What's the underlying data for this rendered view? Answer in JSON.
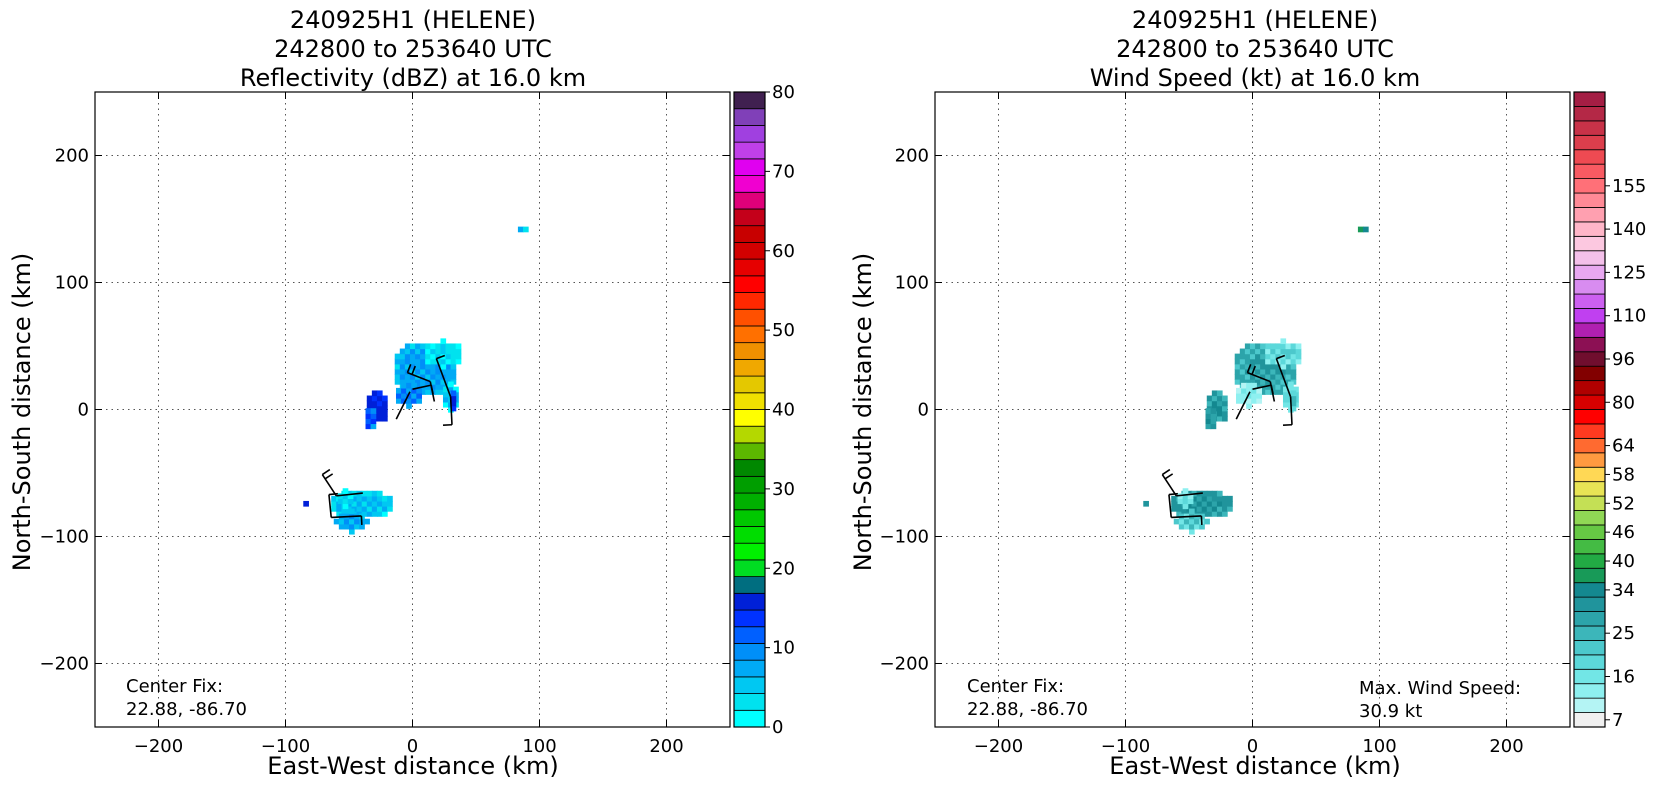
{
  "figure": {
    "panels": [
      {
        "title_lines": [
          "240925H1 (HELENE)",
          "242800 to 253640 UTC",
          "Reflectivity (dBZ) at 16.0 km"
        ],
        "xlabel": "East-West distance (km)",
        "ylabel": "North-South distance (km)",
        "center_fix_label": "Center Fix:",
        "center_fix_value": "22.88, -86.70",
        "colorbar_ticks": [
          "0",
          "10",
          "20",
          "30",
          "40",
          "50",
          "60",
          "70",
          "80"
        ]
      },
      {
        "title_lines": [
          "240925H1 (HELENE)",
          "242800 to 253640 UTC",
          "Wind Speed (kt) at 16.0 km"
        ],
        "xlabel": "East-West distance (km)",
        "ylabel": "North-South distance (km)",
        "center_fix_label": "Center Fix:",
        "center_fix_value": "22.88, -86.70",
        "max_wind_label": "Max. Wind Speed:",
        "max_wind_value": "30.9 kt",
        "colorbar_ticks": [
          "7",
          "16",
          "25",
          "34",
          "40",
          "46",
          "52",
          "58",
          "64",
          "80",
          "96",
          "110",
          "125",
          "140",
          "155"
        ]
      }
    ]
  },
  "chart_data": [
    {
      "type": "heatmap",
      "title": "240925H1 (HELENE) 242800 to 253640 UTC Reflectivity (dBZ) at 16.0 km",
      "xlabel": "East-West distance (km)",
      "ylabel": "North-South distance (km)",
      "xlim": [
        -250,
        250
      ],
      "ylim": [
        -250,
        250
      ],
      "x_ticks": [
        -200,
        -100,
        0,
        100,
        200
      ],
      "y_ticks": [
        -200,
        -100,
        0,
        100,
        200
      ],
      "x_tick_labels": [
        "−200",
        "−100",
        "0",
        "100",
        "200"
      ],
      "y_tick_labels": [
        "−200",
        "−100",
        "0",
        "100",
        "200"
      ],
      "grid": true,
      "colorbar": {
        "min": 0,
        "max": 80,
        "step": 2.5,
        "ticks": [
          0,
          10,
          20,
          30,
          40,
          50,
          60,
          70,
          80
        ],
        "colors": [
          "#00ffff",
          "#00e2ef",
          "#00c8f2",
          "#00aaf5",
          "#008ff8",
          "#0060ff",
          "#0032ff",
          "#0020d8",
          "#006e80",
          "#00dd22",
          "#00f000",
          "#00dd00",
          "#00c800",
          "#00b000",
          "#009e00",
          "#008800",
          "#5cb800",
          "#b4d800",
          "#ffff00",
          "#f0e000",
          "#e4c800",
          "#f0a800",
          "#f09000",
          "#ff7000",
          "#ff5000",
          "#ff2800",
          "#ff0000",
          "#e60000",
          "#d20000",
          "#c80000",
          "#c4001a",
          "#e0007a",
          "#f000d0",
          "#e000f0",
          "#c040e8",
          "#a040e0",
          "#8040b8",
          "#402050"
        ]
      },
      "wind_barbs": true,
      "center_fix": "22.88, -86.70"
    },
    {
      "type": "heatmap",
      "title": "240925H1 (HELENE) 242800 to 253640 UTC Wind Speed (kt) at 16.0 km",
      "xlabel": "East-West distance (km)",
      "ylabel": "North-South distance (km)",
      "xlim": [
        -250,
        250
      ],
      "ylim": [
        -250,
        250
      ],
      "x_ticks": [
        -200,
        -100,
        0,
        100,
        200
      ],
      "y_ticks": [
        -200,
        -100,
        0,
        100,
        200
      ],
      "x_tick_labels": [
        "−200",
        "−100",
        "0",
        "100",
        "200"
      ],
      "y_tick_labels": [
        "−200",
        "−100",
        "0",
        "100",
        "200"
      ],
      "grid": true,
      "colorbar": {
        "ticks": [
          7,
          16,
          25,
          34,
          40,
          46,
          52,
          58,
          64,
          80,
          96,
          110,
          125,
          140,
          155
        ],
        "tick_bins": [
          0,
          3,
          6,
          9,
          11,
          13,
          15,
          17,
          19,
          22,
          25,
          28,
          31,
          34,
          37
        ],
        "colors": [
          "#f0f0f0",
          "#b4f4f4",
          "#8ef0f0",
          "#72e6e6",
          "#5cd8da",
          "#4cc8cc",
          "#3cb6ba",
          "#2ca4aa",
          "#20949c",
          "#148890",
          "#189a58",
          "#22aa44",
          "#44bb44",
          "#66c844",
          "#90d855",
          "#c4e055",
          "#e8e455",
          "#ffd855",
          "#ff9a40",
          "#ff6a30",
          "#ff3a20",
          "#ff0000",
          "#d80000",
          "#b00000",
          "#820000",
          "#700e2e",
          "#8c1054",
          "#b020b0",
          "#c040f0",
          "#cc60f0",
          "#d88cf0",
          "#e8a8f0",
          "#f4c0ea",
          "#fcc8e0",
          "#ffb6c8",
          "#ffa0b0",
          "#ff8a96",
          "#ff7078",
          "#f85a62",
          "#ee4a52",
          "#dc3e4c",
          "#c83248",
          "#b42846",
          "#a41e44"
        ]
      },
      "max_wind_speed": "30.9 kt",
      "wind_barbs": true,
      "center_fix": "22.88, -86.70"
    }
  ]
}
